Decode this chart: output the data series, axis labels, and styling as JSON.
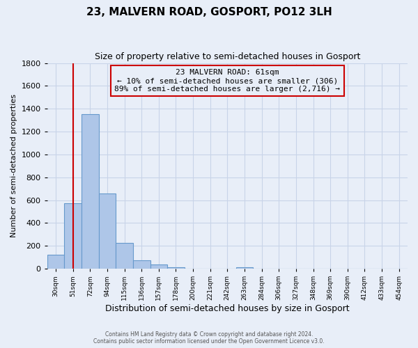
{
  "title": "23, MALVERN ROAD, GOSPORT, PO12 3LH",
  "subtitle": "Size of property relative to semi-detached houses in Gosport",
  "xlabel": "Distribution of semi-detached houses by size in Gosport",
  "ylabel": "Number of semi-detached properties",
  "bin_labels": [
    "30sqm",
    "51sqm",
    "72sqm",
    "94sqm",
    "115sqm",
    "136sqm",
    "157sqm",
    "178sqm",
    "200sqm",
    "221sqm",
    "242sqm",
    "263sqm",
    "284sqm",
    "306sqm",
    "327sqm",
    "348sqm",
    "369sqm",
    "390sqm",
    "412sqm",
    "433sqm",
    "454sqm"
  ],
  "bar_heights": [
    120,
    570,
    1350,
    660,
    225,
    75,
    35,
    15,
    0,
    0,
    0,
    15,
    0,
    0,
    0,
    0,
    0,
    0,
    0,
    0,
    0
  ],
  "bar_color": "#aec6e8",
  "bar_edge_color": "#6699cc",
  "property_bin_index": 1,
  "property_line_color": "#cc0000",
  "annotation_line1": "23 MALVERN ROAD: 61sqm",
  "annotation_line2": "← 10% of semi-detached houses are smaller (306)",
  "annotation_line3": "89% of semi-detached houses are larger (2,716) →",
  "annotation_box_color": "#cc0000",
  "ylim": [
    0,
    1800
  ],
  "yticks": [
    0,
    200,
    400,
    600,
    800,
    1000,
    1200,
    1400,
    1600,
    1800
  ],
  "grid_color": "#c8d4e8",
  "bg_color": "#e8eef8",
  "title_fontsize": 11,
  "subtitle_fontsize": 9,
  "footer_line1": "Contains HM Land Registry data © Crown copyright and database right 2024.",
  "footer_line2": "Contains public sector information licensed under the Open Government Licence v3.0."
}
